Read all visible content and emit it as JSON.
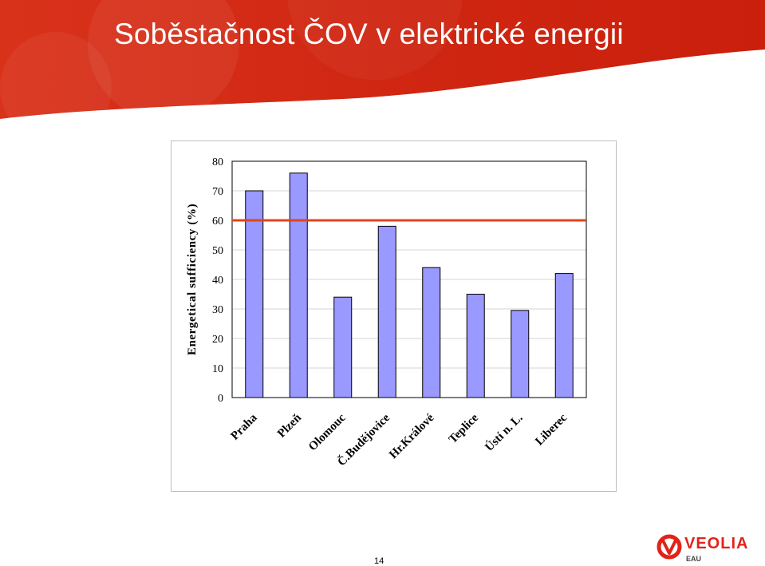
{
  "slide": {
    "title": "Soběstačnost ČOV v elektrické energii",
    "page_number": "14"
  },
  "logo": {
    "brand": "VEOLIA",
    "sub": "EAU",
    "icon": "veolia-logo-icon"
  },
  "colors": {
    "banner": "#d62a12",
    "bar_fill": "#9999ff",
    "bar_stroke": "#000000",
    "reference_line": "#e0441e"
  },
  "chart_data": {
    "type": "bar",
    "title": "",
    "xlabel": "",
    "ylabel": "Energetical sufficiency (%)",
    "categories": [
      "Praha",
      "Plzeň",
      "Olomouc",
      "Č.Budějovice",
      "Hr.Králové",
      "Teplice",
      "Ústí n. L.",
      "Liberec"
    ],
    "values": [
      70,
      76,
      34,
      58,
      44,
      35,
      29.5,
      42
    ],
    "ylim": [
      0,
      80
    ],
    "yticks": [
      "0",
      "10",
      "20",
      "30",
      "40",
      "50",
      "60",
      "70",
      "80"
    ],
    "reference_line": 60,
    "grid": true,
    "legend": "none"
  }
}
